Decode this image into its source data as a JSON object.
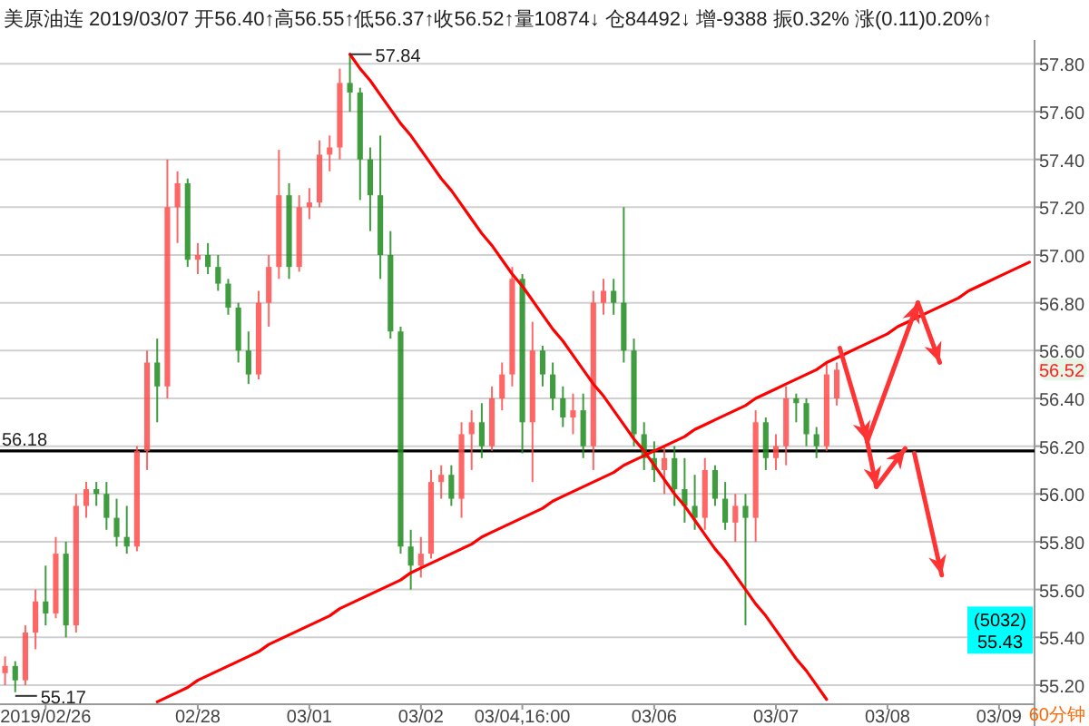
{
  "chart_data": {
    "type": "candlestick",
    "title": "美原油连 2019/03/07 开56.40↑高56.55↑低56.37↑收56.52↑量10874↓ 仓84492↓ 增-9388 振0.32% 涨(0.11)0.20%↑",
    "categories": [
      null,
      null,
      null,
      null,
      "2019/02/26",
      null,
      null,
      null,
      null,
      null,
      null,
      null,
      null,
      null,
      null,
      null,
      null,
      null,
      null,
      "02/28",
      null,
      null,
      null,
      null,
      null,
      null,
      null,
      null,
      null,
      null,
      "03/01",
      null,
      null,
      null,
      null,
      null,
      null,
      null,
      null,
      null,
      null,
      "03/02",
      null,
      null,
      null,
      null,
      null,
      null,
      null,
      null,
      null,
      "03/04,16:00",
      null,
      null,
      null,
      null,
      null,
      null,
      null,
      null,
      null,
      null,
      null,
      null,
      "03/06",
      null,
      null,
      null,
      null,
      null,
      null,
      null,
      null,
      null,
      null,
      null,
      "03/07",
      null,
      null,
      null,
      null,
      null,
      null,
      null,
      null,
      null,
      null,
      "03/08",
      null,
      null,
      null,
      null,
      null,
      null,
      null,
      null,
      null,
      null,
      "03/09",
      null,
      null,
      null
    ],
    "ohlc": [
      [
        55.25,
        55.32,
        55.2,
        55.28
      ],
      [
        55.28,
        55.3,
        55.17,
        55.22
      ],
      [
        55.22,
        55.45,
        55.2,
        55.42
      ],
      [
        55.42,
        55.6,
        55.35,
        55.55
      ],
      [
        55.55,
        55.7,
        55.45,
        55.5
      ],
      [
        55.5,
        55.82,
        55.48,
        55.75
      ],
      [
        55.75,
        55.8,
        55.4,
        55.45
      ],
      [
        55.45,
        56.0,
        55.42,
        55.95
      ],
      [
        55.95,
        56.05,
        55.9,
        56.02
      ],
      [
        56.02,
        56.05,
        55.95,
        56.0
      ],
      [
        56.0,
        56.05,
        55.85,
        55.9
      ],
      [
        55.9,
        55.98,
        55.78,
        55.82
      ],
      [
        55.82,
        55.95,
        55.75,
        55.78
      ],
      [
        55.78,
        56.2,
        55.76,
        56.18
      ],
      [
        56.18,
        56.6,
        56.1,
        56.55
      ],
      [
        56.55,
        56.65,
        56.3,
        56.45
      ],
      [
        56.45,
        57.4,
        56.4,
        57.2
      ],
      [
        57.2,
        57.35,
        57.05,
        57.3
      ],
      [
        57.3,
        57.32,
        56.95,
        56.98
      ],
      [
        56.98,
        57.05,
        56.92,
        57.0
      ],
      [
        57.0,
        57.05,
        56.92,
        56.95
      ],
      [
        56.95,
        57.0,
        56.85,
        56.88
      ],
      [
        56.88,
        56.9,
        56.75,
        56.78
      ],
      [
        56.78,
        56.8,
        56.55,
        56.6
      ],
      [
        56.6,
        56.68,
        56.46,
        56.5
      ],
      [
        56.5,
        56.85,
        56.48,
        56.8
      ],
      [
        56.8,
        57.0,
        56.7,
        56.95
      ],
      [
        56.95,
        57.44,
        56.9,
        57.25
      ],
      [
        57.25,
        57.3,
        56.9,
        56.95
      ],
      [
        56.95,
        57.25,
        56.93,
        57.2
      ],
      [
        57.2,
        57.28,
        57.15,
        57.22
      ],
      [
        57.22,
        57.48,
        57.2,
        57.42
      ],
      [
        57.42,
        57.5,
        57.35,
        57.45
      ],
      [
        57.45,
        57.78,
        57.4,
        57.72
      ],
      [
        57.72,
        57.84,
        57.6,
        57.68
      ],
      [
        57.68,
        57.7,
        57.23,
        57.4
      ],
      [
        57.4,
        57.45,
        57.1,
        57.25
      ],
      [
        57.25,
        57.5,
        56.9,
        57.0
      ],
      [
        57.0,
        57.1,
        56.65,
        56.68
      ],
      [
        56.68,
        56.7,
        55.75,
        55.78
      ],
      [
        55.78,
        55.85,
        55.6,
        55.7
      ],
      [
        55.7,
        55.82,
        55.65,
        55.75
      ],
      [
        55.75,
        56.1,
        55.73,
        56.05
      ],
      [
        56.05,
        56.12,
        55.98,
        56.08
      ],
      [
        56.08,
        56.12,
        55.95,
        55.98
      ],
      [
        55.98,
        56.3,
        55.9,
        56.25
      ],
      [
        56.25,
        56.35,
        56.1,
        56.3
      ],
      [
        56.3,
        56.38,
        56.15,
        56.2
      ],
      [
        56.2,
        56.45,
        56.18,
        56.4
      ],
      [
        56.4,
        56.55,
        56.35,
        56.5
      ],
      [
        56.5,
        56.95,
        56.45,
        56.9
      ],
      [
        56.9,
        56.92,
        56.17,
        56.3
      ],
      [
        56.3,
        56.72,
        56.05,
        56.6
      ],
      [
        56.6,
        56.62,
        56.45,
        56.5
      ],
      [
        56.5,
        56.55,
        56.35,
        56.4
      ],
      [
        56.4,
        56.45,
        56.28,
        56.32
      ],
      [
        56.32,
        56.42,
        56.25,
        56.35
      ],
      [
        56.35,
        56.42,
        56.15,
        56.2
      ],
      [
        56.2,
        56.85,
        56.1,
        56.8
      ],
      [
        56.8,
        56.9,
        56.75,
        56.85
      ],
      [
        56.85,
        56.9,
        56.75,
        56.8
      ],
      [
        56.8,
        57.2,
        56.55,
        56.6
      ],
      [
        56.6,
        56.65,
        56.2,
        56.25
      ],
      [
        56.25,
        56.3,
        56.1,
        56.15
      ],
      [
        56.15,
        56.22,
        56.05,
        56.1
      ],
      [
        56.1,
        56.2,
        56.0,
        56.15
      ],
      [
        56.15,
        56.2,
        55.95,
        56.02
      ],
      [
        56.02,
        56.15,
        55.88,
        55.95
      ],
      [
        55.95,
        56.08,
        55.85,
        55.9
      ],
      [
        55.9,
        56.15,
        55.85,
        56.1
      ],
      [
        56.1,
        56.12,
        55.95,
        55.98
      ],
      [
        55.98,
        56.05,
        55.85,
        55.88
      ],
      [
        55.88,
        56.0,
        55.8,
        55.95
      ],
      [
        55.95,
        56.0,
        55.45,
        55.9
      ],
      [
        55.9,
        56.35,
        55.8,
        56.3
      ],
      [
        56.3,
        56.32,
        56.1,
        56.15
      ],
      [
        56.15,
        56.25,
        56.1,
        56.2
      ],
      [
        56.2,
        56.45,
        56.12,
        56.4
      ],
      [
        56.4,
        56.42,
        56.3,
        56.38
      ],
      [
        56.38,
        56.4,
        56.2,
        56.25
      ],
      [
        56.25,
        56.28,
        56.15,
        56.2
      ],
      [
        56.2,
        56.55,
        56.18,
        56.5
      ],
      [
        56.4,
        56.55,
        56.37,
        56.52
      ],
      null,
      null,
      null,
      null,
      null,
      null,
      null,
      null,
      null,
      null,
      null,
      null,
      null,
      null,
      null,
      null,
      null,
      null,
      null
    ],
    "colors": [
      "#ff4d4d",
      "#1e8c1e",
      "#ff4d4d",
      "#ff4d4d",
      "#1e8c1e",
      "#ff4d4d",
      "#1e8c1e",
      "#ff4d4d",
      "#ff4d4d",
      "#1e8c1e",
      "#1e8c1e",
      "#1e8c1e",
      "#1e8c1e",
      "#ff4d4d",
      "#ff4d4d",
      "#1e8c1e",
      "#ff4d4d",
      "#ff4d4d",
      "#1e8c1e",
      "#ff4d4d",
      "#1e8c1e",
      "#1e8c1e",
      "#1e8c1e",
      "#1e8c1e",
      "#1e8c1e",
      "#ff4d4d",
      "#ff4d4d",
      "#ff4d4d",
      "#1e8c1e",
      "#ff4d4d",
      "#ff4d4d",
      "#ff4d4d",
      "#ff4d4d",
      "#ff4d4d",
      "#1e8c1e",
      "#1e8c1e",
      "#1e8c1e",
      "#1e8c1e",
      "#1e8c1e",
      "#1e8c1e",
      "#1e8c1e",
      "#ff4d4d",
      "#ff4d4d",
      "#ff4d4d",
      "#1e8c1e",
      "#ff4d4d",
      "#ff4d4d",
      "#1e8c1e",
      "#ff4d4d",
      "#ff4d4d",
      "#ff4d4d",
      "#1e8c1e",
      "#ff4d4d",
      "#1e8c1e",
      "#1e8c1e",
      "#1e8c1e",
      "#ff4d4d",
      "#1e8c1e",
      "#ff4d4d",
      "#ff4d4d",
      "#1e8c1e",
      "#1e8c1e",
      "#1e8c1e",
      "#1e8c1e",
      "#1e8c1e",
      "#ff4d4d",
      "#1e8c1e",
      "#1e8c1e",
      "#1e8c1e",
      "#ff4d4d",
      "#1e8c1e",
      "#1e8c1e",
      "#ff4d4d",
      "#1e8c1e",
      "#ff4d4d",
      "#1e8c1e",
      "#ff4d4d",
      "#ff4d4d",
      "#1e8c1e",
      "#1e8c1e",
      "#1e8c1e",
      "#ff4d4d",
      "#ff4d4d",
      null,
      null,
      null,
      null,
      null,
      null,
      null,
      null,
      null,
      null,
      null,
      null,
      null,
      null,
      null,
      null,
      null,
      null,
      null
    ],
    "series": [
      {
        "type": "line",
        "color": "#ff0000",
        "values": [
          null,
          null,
          null,
          null,
          null,
          null,
          null,
          null,
          null,
          null,
          null,
          null,
          null,
          null,
          null,
          null,
          null,
          null,
          null,
          null,
          null,
          null,
          null,
          null,
          null,
          null,
          null,
          null,
          null,
          null,
          null,
          null,
          null,
          null,
          57.84,
          57.78,
          57.73,
          57.67,
          57.61,
          57.55,
          57.5,
          57.44,
          57.38,
          57.32,
          57.27,
          57.21,
          57.15,
          57.09,
          57.04,
          56.98,
          56.92,
          56.87,
          56.81,
          56.75,
          56.69,
          56.64,
          56.58,
          56.52,
          56.46,
          56.41,
          56.35,
          56.29,
          56.23,
          56.18,
          56.12,
          56.06,
          56.0,
          55.95,
          55.89,
          55.83,
          55.77,
          55.72,
          55.66,
          55.6,
          55.54,
          55.49,
          55.43,
          55.37,
          55.31,
          55.26,
          55.2,
          55.14,
          null,
          null,
          null,
          null,
          null,
          null,
          null,
          null,
          null,
          null,
          null,
          null,
          null,
          null,
          null,
          null,
          null,
          null,
          null,
          null
        ]
      },
      {
        "type": "line",
        "color": "#ff0000",
        "values": [
          null,
          null,
          null,
          null,
          null,
          null,
          null,
          null,
          null,
          null,
          null,
          null,
          null,
          null,
          null,
          55.13,
          55.15,
          55.17,
          55.19,
          55.22,
          55.24,
          55.26,
          55.28,
          55.3,
          55.32,
          55.34,
          55.37,
          55.39,
          55.41,
          55.43,
          55.45,
          55.47,
          55.49,
          55.52,
          55.54,
          55.56,
          55.58,
          55.6,
          55.62,
          55.64,
          55.67,
          55.69,
          55.71,
          55.73,
          55.75,
          55.77,
          55.79,
          55.82,
          55.84,
          55.86,
          55.88,
          55.9,
          55.92,
          55.94,
          55.97,
          55.99,
          56.01,
          56.03,
          56.05,
          56.07,
          56.09,
          56.12,
          56.14,
          56.16,
          56.18,
          56.2,
          56.22,
          56.24,
          56.27,
          56.29,
          56.31,
          56.33,
          56.35,
          56.37,
          56.4,
          56.42,
          56.44,
          56.46,
          56.48,
          56.5,
          56.52,
          56.55,
          56.57,
          56.59,
          56.61,
          56.63,
          56.65,
          56.67,
          56.7,
          56.72,
          56.74,
          56.76,
          56.78,
          56.8,
          56.82,
          56.85,
          56.87,
          56.89,
          56.91,
          56.93,
          56.95,
          56.97
        ]
      }
    ],
    "ylim": [
      55.12,
      57.9
    ],
    "yticks": [
      {
        "value": 55.2,
        "label": "55.20"
      },
      {
        "value": 55.4,
        "label": "55.40"
      },
      {
        "value": 55.6,
        "label": "55.60"
      },
      {
        "value": 55.8,
        "label": "55.80"
      },
      {
        "value": 56.0,
        "label": "56.00"
      },
      {
        "value": 56.2,
        "label": "56.20"
      },
      {
        "value": 56.4,
        "label": "56.40"
      },
      {
        "value": 56.6,
        "label": "56.60"
      },
      {
        "value": 56.8,
        "label": "56.80"
      },
      {
        "value": 57.0,
        "label": "57.00"
      },
      {
        "value": 57.2,
        "label": "57.20"
      },
      {
        "value": 57.4,
        "label": "57.40"
      },
      {
        "value": 57.6,
        "label": "57.60"
      },
      {
        "value": 57.8,
        "label": "57.80"
      }
    ],
    "grid": "y",
    "ref_lines": [
      {
        "axis": "y",
        "value": 56.18,
        "label": "56.18",
        "color": "#000000"
      }
    ],
    "annotations": [
      "57.84",
      "55.17",
      {
        "text": "56.52",
        "y": 56.52
      },
      {
        "text": "(5032)\n55.43",
        "y": 55.43
      },
      "60分钟"
    ]
  }
}
